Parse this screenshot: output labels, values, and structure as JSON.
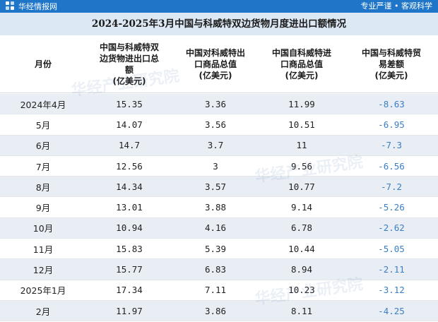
{
  "header": {
    "brand": "华经情报网",
    "slogan": "专业严谨 • 客观科学"
  },
  "title": "2024-2025年3月中国与科威特双边货物月度进出口额情况",
  "columns": [
    "月份",
    "中国与科威特双\n边货物进出口总\n额\n(亿美元)",
    "中国对科威特出\n口商品总值\n(亿美元)",
    "中国自科威特进\n口商品总值\n(亿美元)",
    "中国与科威特贸\n易差额\n(亿美元)"
  ],
  "rows": [
    {
      "month": "2024年4月",
      "total": "15.35",
      "export": "3.36",
      "import": "11.99",
      "balance": "-8.63"
    },
    {
      "month": "5月",
      "total": "14.07",
      "export": "3.56",
      "import": "10.51",
      "balance": "-6.95"
    },
    {
      "month": "6月",
      "total": "14.7",
      "export": "3.7",
      "import": "11",
      "balance": "-7.3"
    },
    {
      "month": "7月",
      "total": "12.56",
      "export": "3",
      "import": "9.56",
      "balance": "-6.56"
    },
    {
      "month": "8月",
      "total": "14.34",
      "export": "3.57",
      "import": "10.77",
      "balance": "-7.2"
    },
    {
      "month": "9月",
      "total": "13.01",
      "export": "3.88",
      "import": "9.14",
      "balance": "-5.26"
    },
    {
      "month": "10月",
      "total": "10.94",
      "export": "4.16",
      "import": "6.78",
      "balance": "-2.62"
    },
    {
      "month": "11月",
      "total": "15.83",
      "export": "5.39",
      "import": "10.44",
      "balance": "-5.05"
    },
    {
      "month": "12月",
      "total": "15.77",
      "export": "6.83",
      "import": "8.94",
      "balance": "-2.11"
    },
    {
      "month": "2025年1月",
      "total": "17.34",
      "export": "7.11",
      "import": "10.23",
      "balance": "-3.12"
    },
    {
      "month": "2月",
      "total": "11.97",
      "export": "3.86",
      "import": "8.11",
      "balance": "-4.25"
    }
  ],
  "colors": {
    "brand_bar": "#1f76c8",
    "title_bg": "#dce8f4",
    "row_stripe": "#e9eef5",
    "negative_value": "#3a7fc4"
  },
  "watermarks": [
    "华经产业研究院",
    "华经产业研究院",
    "华经产业研究院"
  ]
}
